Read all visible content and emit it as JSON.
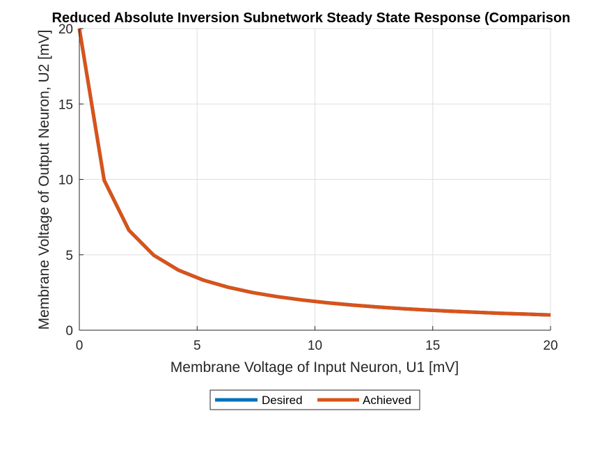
{
  "chart_data": {
    "type": "line",
    "title": "Reduced Absolute Inversion Subnetwork Steady State Response (Comparison",
    "xlabel": "Membrane Voltage of Input Neuron, U1 [mV]",
    "ylabel": "Membrane Voltage of Output Neuron, U2 [mV]",
    "xlim": [
      0,
      20
    ],
    "ylim": [
      0,
      20
    ],
    "xticks": [
      0,
      5,
      10,
      15,
      20
    ],
    "yticks": [
      0,
      5,
      10,
      15,
      20
    ],
    "grid": true,
    "legend_position": "bottom-center",
    "x": [
      0,
      1.053,
      2.105,
      3.158,
      4.211,
      5.263,
      6.316,
      7.368,
      8.421,
      9.474,
      10.526,
      11.579,
      12.632,
      13.684,
      14.737,
      15.789,
      16.842,
      17.895,
      18.947,
      20
    ],
    "series": [
      {
        "name": "Desired",
        "color": "#0072BD",
        "values": [
          20,
          9.95,
          6.63,
          4.97,
          3.98,
          3.32,
          2.85,
          2.49,
          2.22,
          2.0,
          1.82,
          1.67,
          1.54,
          1.43,
          1.34,
          1.26,
          1.19,
          1.12,
          1.07,
          1.01
        ]
      },
      {
        "name": "Achieved",
        "color": "#D95319",
        "values": [
          20,
          9.95,
          6.63,
          4.97,
          3.98,
          3.32,
          2.85,
          2.49,
          2.22,
          2.0,
          1.82,
          1.67,
          1.54,
          1.43,
          1.34,
          1.26,
          1.19,
          1.12,
          1.07,
          1.01
        ]
      }
    ]
  }
}
